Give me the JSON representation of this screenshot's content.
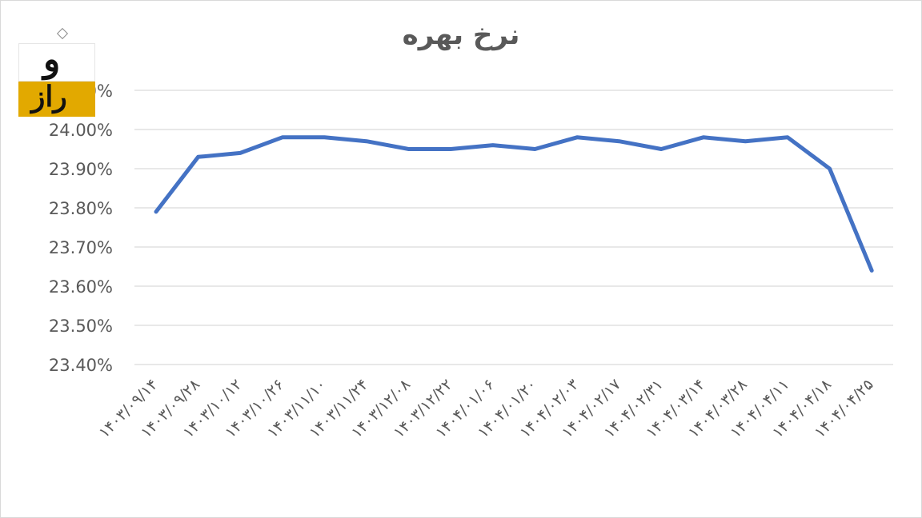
{
  "chart_data": {
    "type": "line",
    "title": "نرخ بهره",
    "xlabel": "",
    "ylabel": "",
    "ylim": [
      23.4,
      24.1
    ],
    "yticks": [
      "23.40%",
      "23.50%",
      "23.60%",
      "23.70%",
      "23.80%",
      "23.90%",
      "24.00%",
      "24.10%"
    ],
    "grid": true,
    "line_color": "#4472c4",
    "categories": [
      "۱۴۰۳/۰۹/۱۴",
      "۱۴۰۳/۰۹/۲۸",
      "۱۴۰۳/۱۰/۱۲",
      "۱۴۰۳/۱۰/۲۶",
      "۱۴۰۳/۱۱/۱۰",
      "۱۴۰۳/۱۱/۲۴",
      "۱۴۰۳/۱۲/۰۸",
      "۱۴۰۳/۱۲/۲۲",
      "۱۴۰۴/۰۱/۰۶",
      "۱۴۰۴/۰۱/۲۰",
      "۱۴۰۴/۰۲/۰۳",
      "۱۴۰۴/۰۲/۱۷",
      "۱۴۰۴/۰۲/۳۱",
      "۱۴۰۴/۰۳/۱۴",
      "۱۴۰۴/۰۳/۲۸",
      "۱۴۰۴/۰۴/۱۱",
      "۱۴۰۴/۰۴/۱۸",
      "۱۴۰۴/۰۴/۲۵"
    ],
    "x_points": [
      "۱۴۰۳/۰۹/۱۴",
      "۱۴۰۳/۰۹/۲۸",
      "۱۴۰۳/۱۰/۱۲",
      "۱۴۰۳/۱۰/۲۶",
      "۱۴۰۳/۱۱/۱۰",
      "۱۴۰۳/۱۱/۲۴",
      "۱۴۰۳/۱۲/۰۸",
      "۱۴۰۳/۱۲/۲۲",
      "۱۴۰۴/۰۱/۰۶",
      "۱۴۰۴/۰۱/۲۰",
      "۱۴۰۴/۰۲/۰۳",
      "۱۴۰۴/۰۲/۱۷",
      "۱۴۰۴/۰۲/۳۱",
      "۱۴۰۴/۰۳/۱۴",
      "۱۴۰۴/۰۳/۲۸",
      "۱۴۰۴/۰۴/۱۱",
      "۱۴۰۴/۰۴/۱۸",
      "۱۴۰۴/۰۴/۲۵"
    ],
    "series": [
      {
        "values": [
          23.79,
          23.93,
          23.94,
          23.98,
          23.98,
          23.97,
          23.95,
          23.95,
          23.96,
          23.95,
          23.98,
          23.97,
          23.95,
          23.98,
          23.97,
          23.98,
          23.9,
          23.64
        ]
      }
    ]
  },
  "logo": {
    "top_text": "و",
    "bottom_text": "راز",
    "colors": {
      "bottom": "#e2a900",
      "text": "#111111"
    }
  }
}
